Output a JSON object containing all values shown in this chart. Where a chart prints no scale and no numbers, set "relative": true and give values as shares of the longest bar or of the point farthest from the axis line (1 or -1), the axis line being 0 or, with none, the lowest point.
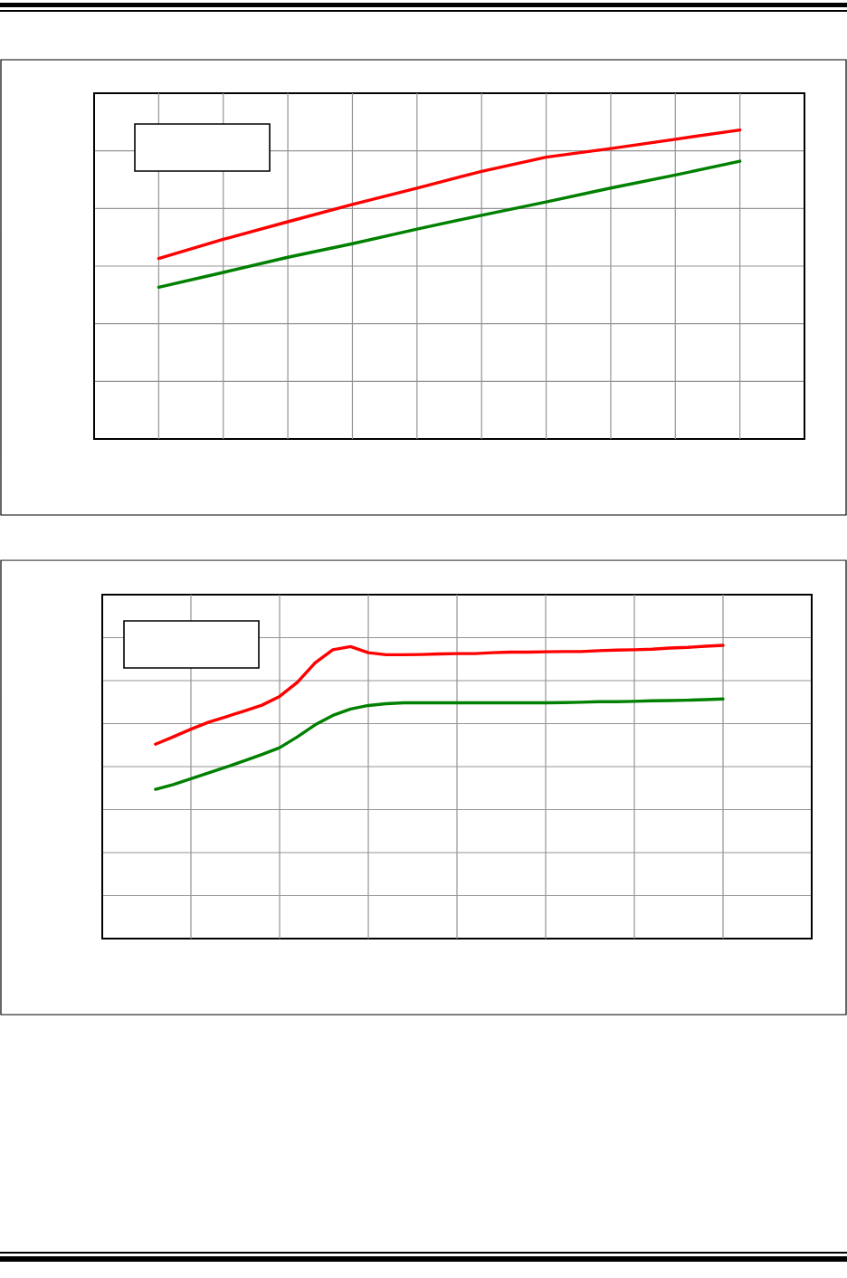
{
  "chart_data": [
    {
      "type": "line",
      "relative": true,
      "grid": true,
      "categories": [
        null,
        null,
        null,
        null,
        null,
        null,
        null,
        null,
        null,
        null
      ],
      "series": [
        {
          "color": "#ff0000",
          "values": [
            0.584,
            0.646,
            0.703,
            0.759,
            0.812,
            0.866,
            0.912,
            0.94,
            0.97,
            1
          ]
        },
        {
          "color": "#008000",
          "values": [
            0.491,
            0.539,
            0.588,
            0.632,
            0.679,
            0.724,
            0.767,
            0.812,
            0.854,
            0.899
          ]
        }
      ]
    },
    {
      "type": "line",
      "relative": true,
      "grid": true,
      "categories": [
        null,
        null,
        null,
        null,
        null,
        null,
        null,
        null,
        null,
        null,
        null,
        null,
        null,
        null,
        null,
        null,
        null,
        null,
        null,
        null,
        null,
        null,
        null,
        null,
        null,
        null,
        null,
        null,
        null,
        null,
        null,
        null,
        null
      ],
      "series": [
        {
          "color": "#ff0000",
          "values": [
            0.663,
            0.688,
            0.714,
            0.738,
            0.757,
            0.776,
            0.796,
            0.826,
            0.874,
            0.94,
            0.985,
            0.996,
            0.975,
            0.968,
            0.968,
            0.969,
            0.971,
            0.972,
            0.972,
            0.975,
            0.977,
            0.977,
            0.978,
            0.979,
            0.979,
            0.982,
            0.984,
            0.985,
            0.987,
            0.991,
            0.993,
            0.997,
            1
          ]
        },
        {
          "color": "#008000",
          "values": [
            0.509,
            0.525,
            0.545,
            0.565,
            0.585,
            0.606,
            0.628,
            0.651,
            0.688,
            0.729,
            0.761,
            0.783,
            0.795,
            0.801,
            0.804,
            0.804,
            0.804,
            0.804,
            0.804,
            0.804,
            0.804,
            0.804,
            0.804,
            0.805,
            0.806,
            0.808,
            0.808,
            0.809,
            0.811,
            0.812,
            0.813,
            0.815,
            0.817
          ]
        }
      ]
    }
  ]
}
